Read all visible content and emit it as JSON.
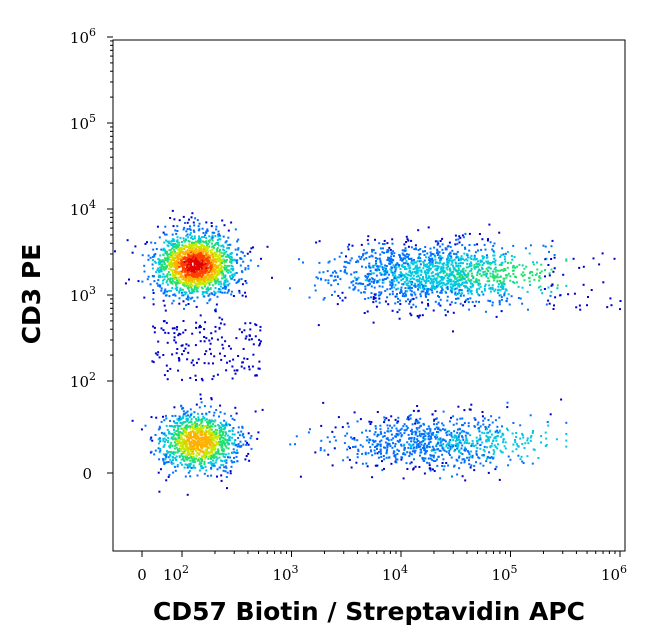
{
  "chart_data": {
    "type": "scatter",
    "style": "flow-cytometry-density-dot-plot",
    "title": "",
    "xlabel": "CD57 Biotin / Streptavidin APC",
    "ylabel": "CD3 PE",
    "x_scale": "biexponential",
    "y_scale": "biexponential",
    "xlim": [
      -50,
      1200000
    ],
    "ylim": [
      -30,
      1500000
    ],
    "x_ticks": [
      {
        "value": 0,
        "label": "0"
      },
      {
        "value": 100,
        "label": "10",
        "exp": "2"
      },
      {
        "value": 1000,
        "label": "10",
        "exp": "3"
      },
      {
        "value": 10000,
        "label": "10",
        "exp": "4"
      },
      {
        "value": 100000,
        "label": "10",
        "exp": "5"
      },
      {
        "value": 1000000,
        "label": "10",
        "exp": "6"
      }
    ],
    "y_ticks": [
      {
        "value": 0,
        "label": "0"
      },
      {
        "value": 100,
        "label": "10",
        "exp": "2"
      },
      {
        "value": 1000,
        "label": "10",
        "exp": "3"
      },
      {
        "value": 10000,
        "label": "10",
        "exp": "4"
      },
      {
        "value": 100000,
        "label": "10",
        "exp": "5"
      },
      {
        "value": 1000000,
        "label": "10",
        "exp": "6"
      }
    ],
    "grid": false,
    "density_colors": [
      "#0000cc",
      "#0070ff",
      "#00c8e0",
      "#20e070",
      "#c8e800",
      "#ffb000",
      "#ff4000",
      "#e00000"
    ],
    "populations": [
      {
        "x_center": 130,
        "x_spread": 45,
        "y_center": 2300,
        "y_spread": 0.45,
        "peak_density": 1.0,
        "weight": 0.34
      },
      {
        "x_center": 20000,
        "x_spread": 2.6,
        "y_center": 1800,
        "y_spread": 0.4,
        "peak_density": 0.45,
        "weight": 0.28
      },
      {
        "x_center": 140,
        "x_spread": 45,
        "y_center": 35,
        "y_spread": 12,
        "peak_density": 0.75,
        "weight": 0.22
      },
      {
        "x_center": 20000,
        "x_spread": 2.6,
        "y_center": 35,
        "y_spread": 12,
        "peak_density": 0.3,
        "weight": 0.16
      }
    ]
  }
}
